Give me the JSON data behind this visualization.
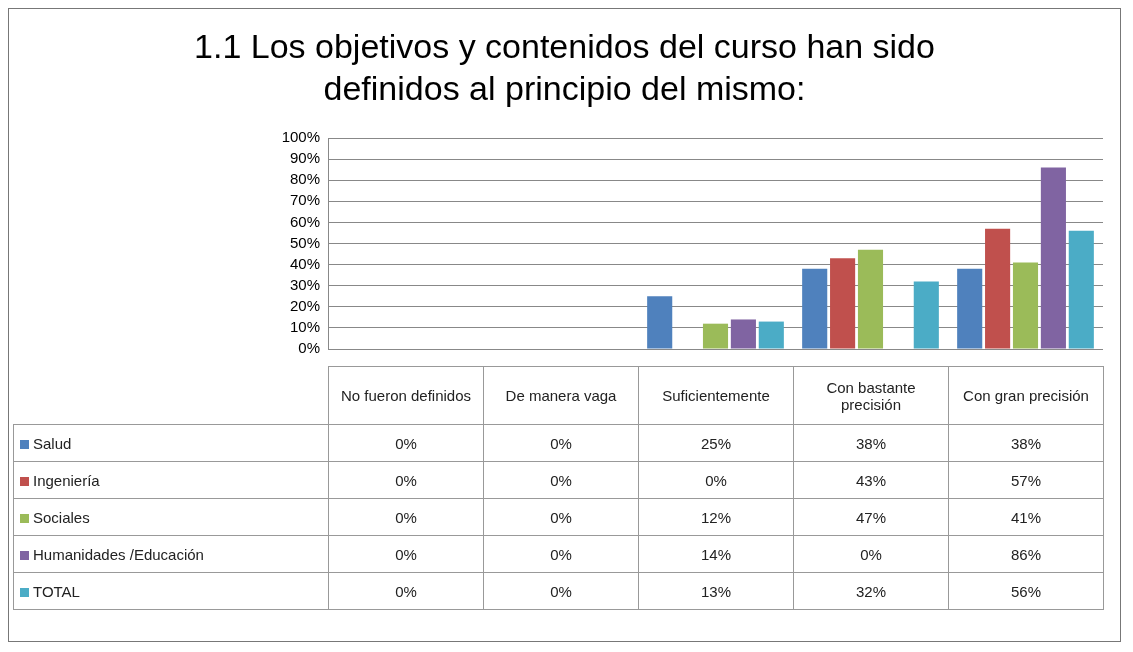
{
  "chart_data": {
    "type": "bar",
    "title": "1.1 Los objetivos y contenidos del curso han sido definidos al principio del mismo:",
    "categories": [
      "No fueron definidos",
      "De manera vaga",
      "Suficientemente",
      "Con bastante precisión",
      "Con gran precisión"
    ],
    "series": [
      {
        "name": "Salud",
        "color": "#4f81bd",
        "values": [
          0,
          0,
          25,
          38,
          38
        ],
        "value_labels": [
          "0%",
          "0%",
          "25%",
          "38%",
          "38%"
        ]
      },
      {
        "name": "Ingeniería",
        "color": "#c0504d",
        "values": [
          0,
          0,
          0,
          43,
          57
        ],
        "value_labels": [
          "0%",
          "0%",
          "0%",
          "43%",
          "57%"
        ]
      },
      {
        "name": "Sociales",
        "color": "#9bbb59",
        "values": [
          0,
          0,
          12,
          47,
          41
        ],
        "value_labels": [
          "0%",
          "0%",
          "12%",
          "47%",
          "41%"
        ]
      },
      {
        "name": "Humanidades /Educación",
        "color": "#8064a2",
        "values": [
          0,
          0,
          14,
          0,
          86
        ],
        "value_labels": [
          "0%",
          "0%",
          "14%",
          "0%",
          "86%"
        ]
      },
      {
        "name": "TOTAL",
        "color": "#4bacc6",
        "values": [
          0,
          0,
          13,
          32,
          56
        ],
        "value_labels": [
          "0%",
          "0%",
          "13%",
          "32%",
          "56%"
        ]
      }
    ],
    "ylim": [
      0,
      100
    ],
    "yticks": [
      {
        "value": 0,
        "label": "0%"
      },
      {
        "value": 10,
        "label": "10%"
      },
      {
        "value": 20,
        "label": "20%"
      },
      {
        "value": 30,
        "label": "30%"
      },
      {
        "value": 40,
        "label": "40%"
      },
      {
        "value": 50,
        "label": "50%"
      },
      {
        "value": 60,
        "label": "60%"
      },
      {
        "value": 70,
        "label": "70%"
      },
      {
        "value": 80,
        "label": "80%"
      },
      {
        "value": 90,
        "label": "90%"
      },
      {
        "value": 100,
        "label": "100%"
      }
    ],
    "grid": "y",
    "legend": "bottom"
  }
}
